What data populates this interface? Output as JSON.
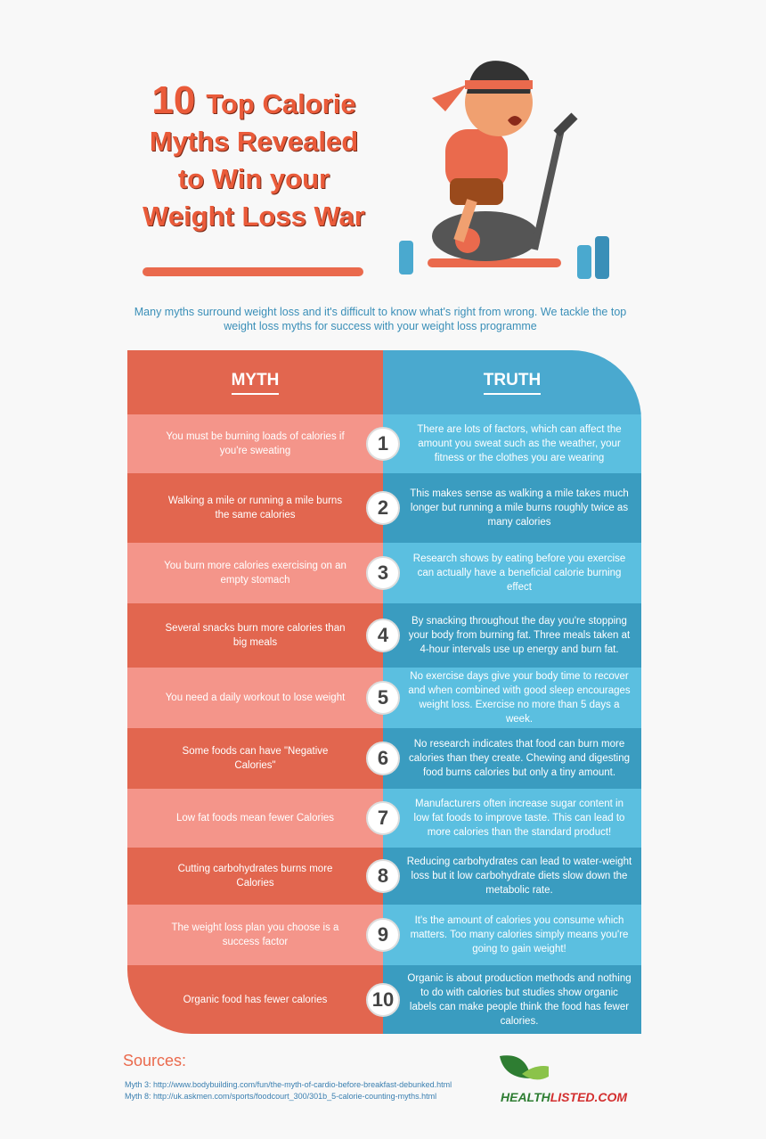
{
  "header": {
    "title": {
      "number": "10",
      "lines": [
        "Top Calorie",
        "Myths Revealed",
        "to Win your",
        "Weight Loss War"
      ]
    },
    "intro": "Many myths surround weight loss and it's difficult to know what's right from wrong. We tackle the top weight loss myths for success with your weight loss programme"
  },
  "table": {
    "headers": [
      "MYTH",
      "TRUTH"
    ],
    "rows": [
      {
        "myth": "You must be burning loads of calories if you're sweating",
        "number": "1",
        "truth": "There are lots of factors, which can affect the amount you sweat such as the weather, your fitness or the clothes you are wearing"
      },
      {
        "myth": "Walking a mile or running a mile burns the same calories",
        "number": "2",
        "truth": "This makes sense as walking a mile takes much longer but running a mile burns roughly twice as many calories"
      },
      {
        "myth": "You burn more calories exercising on an empty stomach",
        "number": "3",
        "truth": "Research shows by eating before you exercise can actually have a beneficial calorie burning effect"
      },
      {
        "myth": "Several snacks burn more calories than big meals",
        "number": "4",
        "truth": "By snacking throughout the day you're stopping your body from burning fat. Three meals taken at 4-hour intervals use up energy and burn fat."
      },
      {
        "myth": "You need a daily workout to lose weight",
        "number": "5",
        "truth": "No exercise days give your body time to recover and when combined with good sleep encourages weight loss. Exercise no more than 5 days a week."
      },
      {
        "myth": "Some foods can have \"Negative Calories\"",
        "number": "6",
        "truth": "No research indicates that food can burn more calories than they create. Chewing and digesting food burns calories but only a tiny amount."
      },
      {
        "myth": "Low fat foods mean fewer Calories",
        "number": "7",
        "truth": "Manufacturers often increase sugar content in low fat foods to improve taste. This can lead to more calories than the standard product!"
      },
      {
        "myth": "Cutting carbohydrates burns more Calories",
        "number": "8",
        "truth": "Reducing carbohydrates can lead to water-weight loss but it low carbohydrate diets slow down the metabolic rate."
      },
      {
        "myth": "The weight loss plan you choose is a success factor",
        "number": "9",
        "truth": "It's the amount of calories you consume which matters. Too many calories simply means you're going to gain weight!"
      },
      {
        "myth": "Organic food has fewer calories",
        "number": "10",
        "truth": "Organic is about production methods and nothing to do with calories but studies show organic labels can make people think the food has fewer calories."
      }
    ]
  },
  "sources": {
    "title": "Sources:",
    "lines": [
      "Myth 3: http://www.bodybuilding.com/fun/the-myth-of-cardio-before-breakfast-debunked.html",
      "Myth 8: http://uk.askmen.com/sports/foodcourt_300/301b_5-calorie-counting-myths.html"
    ]
  },
  "logo": {
    "part1": "HEALTH",
    "part2": "LISTED.COM"
  }
}
